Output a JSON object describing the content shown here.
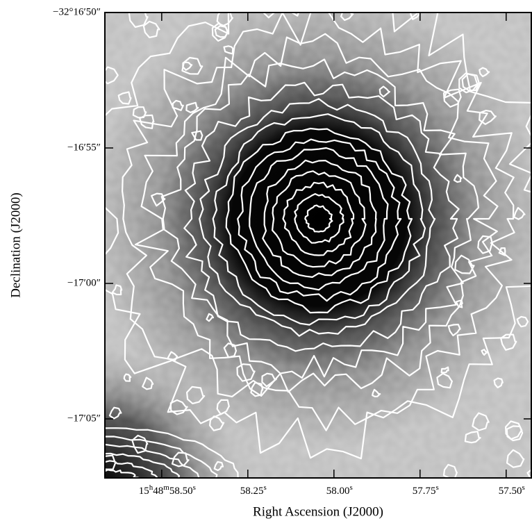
{
  "chart_data": {
    "type": "image",
    "xlabel": "Right Ascension (J2000)",
    "ylabel": "Declination (J2000)",
    "xlim": [
      58.665,
      57.425
    ],
    "xticks": [
      {
        "value": 58.5,
        "label": "15h48m58.50s"
      },
      {
        "value": 58.25,
        "label": "58.25s"
      },
      {
        "value": 58.0,
        "label": "58.00s"
      },
      {
        "value": 57.75,
        "label": "57.75s"
      },
      {
        "value": 57.5,
        "label": "57.50s"
      }
    ],
    "ylim": [
      67.18,
      50
    ],
    "yticks": [
      {
        "value": 50,
        "label": "−32°16′50″"
      },
      {
        "value": 55,
        "label": "−16′55″"
      },
      {
        "value": 60,
        "label": "−17′00″"
      },
      {
        "value": 65,
        "label": "−17′05″"
      }
    ]
  }
}
